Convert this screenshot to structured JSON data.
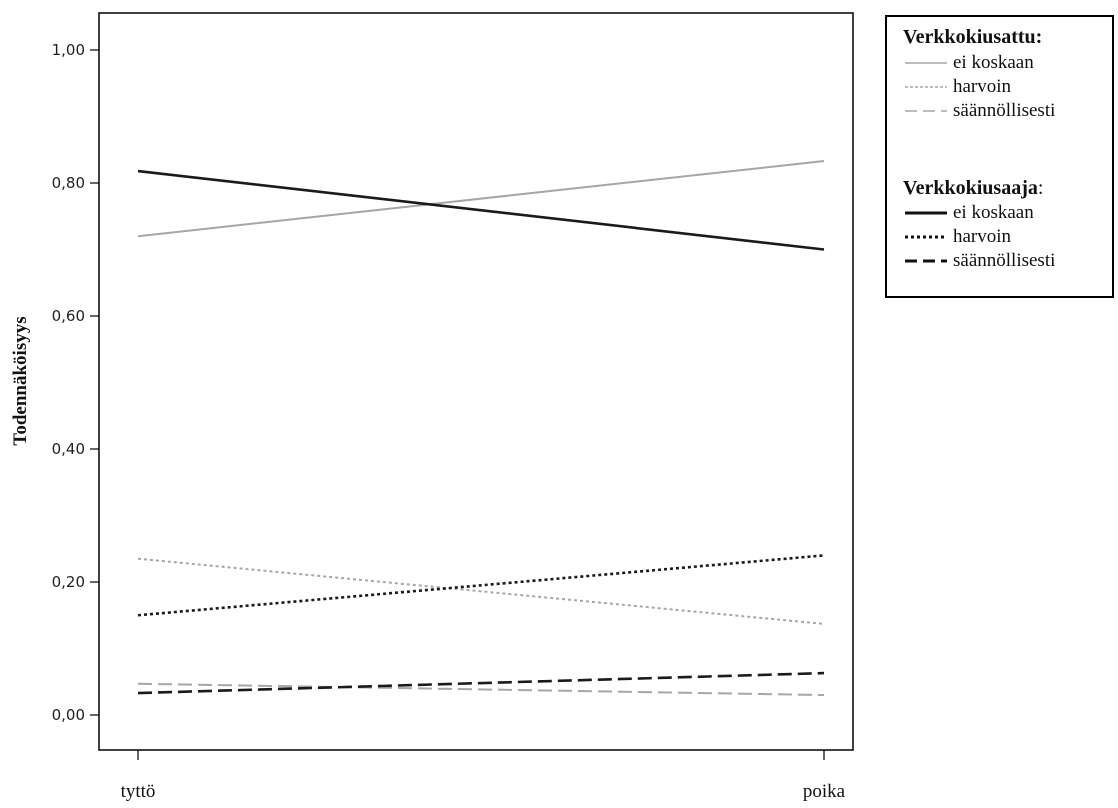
{
  "chart_data": {
    "type": "line",
    "title": "",
    "xlabel": "",
    "ylabel": "Todennäköisyys",
    "categories": [
      "tyttö",
      "poika"
    ],
    "ylim": [
      -0.05,
      1.06
    ],
    "yticks": [
      0,
      0.2,
      0.4,
      0.6,
      0.8,
      1.0
    ],
    "ytick_labels": [
      "0,00",
      "0,20",
      "0,40",
      "0,60",
      "0,80",
      "1,00"
    ],
    "grid": false,
    "legend_position": "top-right outside",
    "series": [
      {
        "name": "ei koskaan",
        "group": "Verkkokiusattu",
        "values": [
          0.72,
          0.833
        ],
        "color": "#a6a6a6",
        "style": "solid",
        "width": 2
      },
      {
        "name": "harvoin",
        "group": "Verkkokiusattu",
        "values": [
          0.235,
          0.137
        ],
        "color": "#a6a6a6",
        "style": "dotted",
        "width": 2
      },
      {
        "name": "säännöllisesti",
        "group": "Verkkokiusattu",
        "values": [
          0.047,
          0.03
        ],
        "color": "#a6a6a6",
        "style": "dashed",
        "width": 2
      },
      {
        "name": "ei koskaan",
        "group": "Verkkokiusaaja",
        "values": [
          0.818,
          0.7
        ],
        "color": "#1a1a1a",
        "style": "solid",
        "width": 2.6
      },
      {
        "name": "harvoin",
        "group": "Verkkokiusaaja",
        "values": [
          0.15,
          0.24
        ],
        "color": "#1a1a1a",
        "style": "dotted",
        "width": 2.6
      },
      {
        "name": "säännöllisesti",
        "group": "Verkkokiusaaja",
        "values": [
          0.033,
          0.063
        ],
        "color": "#1a1a1a",
        "style": "dashed",
        "width": 2.6
      }
    ]
  },
  "legend": {
    "group1_title": "Verkkokiusattu:",
    "group1_items": [
      "ei koskaan",
      "harvoin",
      "säännöllisesti"
    ],
    "group2_title": "Verkkokiusaaja",
    "group2_colon": ":",
    "group2_items": [
      "ei koskaan",
      "harvoin",
      "säännöllisesti"
    ]
  }
}
